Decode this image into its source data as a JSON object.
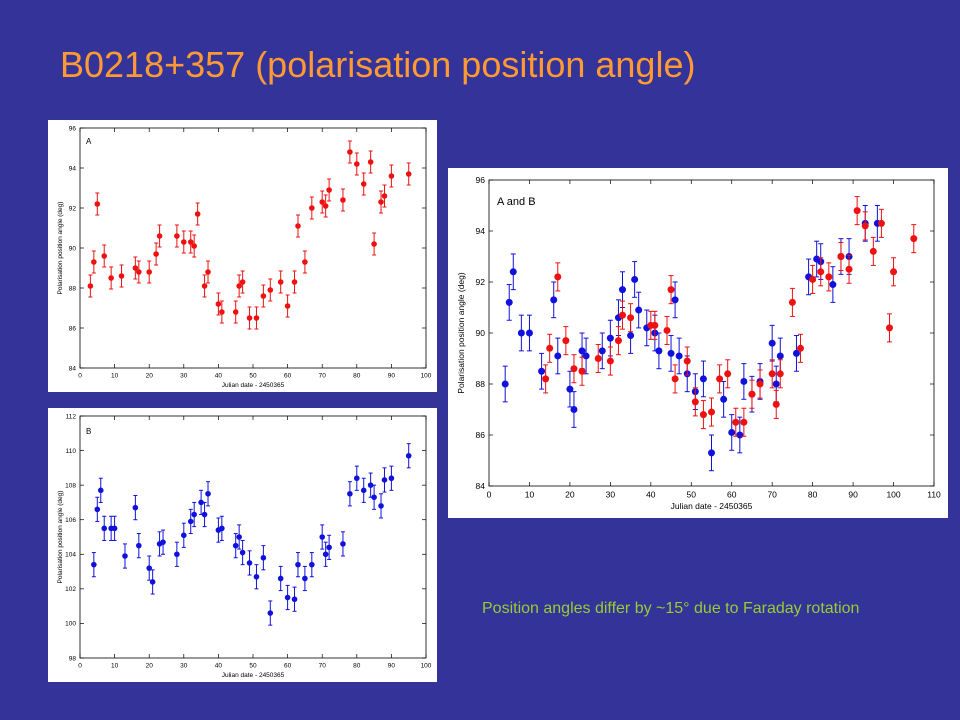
{
  "slide": {
    "title": "B0218+357 (polarisation position angle)",
    "caption": "Position angles differ by ~15° due to Faraday rotation",
    "background_color": "#333399",
    "title_color": "#ff9933",
    "caption_color": "#99cc33"
  },
  "chart_data": [
    {
      "type": "scatter",
      "panel_label": "A",
      "xlabel": "Julian date - 2450365",
      "ylabel": "Polarisation position angle (deg)",
      "xlim": [
        0,
        100
      ],
      "ylim": [
        84,
        96
      ],
      "xticks": [
        0,
        10,
        20,
        30,
        40,
        50,
        60,
        70,
        80,
        90,
        100
      ],
      "yticks": [
        84,
        86,
        88,
        90,
        92,
        94,
        96
      ],
      "series": [
        {
          "color": "#ee1111",
          "error": 0.55,
          "x": [
            3,
            4,
            5,
            7,
            9,
            12,
            16,
            17,
            20,
            22,
            23,
            28,
            30,
            32,
            33,
            34,
            36,
            37,
            40,
            41,
            45,
            46,
            47,
            49,
            51,
            53,
            55,
            58,
            60,
            62,
            63,
            65,
            67,
            70,
            71,
            72,
            76,
            78,
            80,
            82,
            84,
            85,
            87,
            88,
            90,
            95
          ],
          "y": [
            88.1,
            89.3,
            92.2,
            89.6,
            88.5,
            88.6,
            89.0,
            88.8,
            88.8,
            89.7,
            90.6,
            90.6,
            90.3,
            90.3,
            90.1,
            91.7,
            88.1,
            88.8,
            87.2,
            86.8,
            86.8,
            88.1,
            88.3,
            86.5,
            86.5,
            87.6,
            87.9,
            88.3,
            87.1,
            88.3,
            91.1,
            89.3,
            92.0,
            92.3,
            92.1,
            92.9,
            92.4,
            94.8,
            94.2,
            93.2,
            94.3,
            90.2,
            92.3,
            92.6,
            93.6,
            93.7
          ]
        }
      ]
    },
    {
      "type": "scatter",
      "panel_label": "B",
      "xlabel": "Julian date - 2450365",
      "ylabel": "Polarisation position angle (deg)",
      "xlim": [
        0,
        100
      ],
      "ylim": [
        98,
        112
      ],
      "xticks": [
        0,
        10,
        20,
        30,
        40,
        50,
        60,
        70,
        80,
        90,
        100
      ],
      "yticks": [
        98,
        100,
        102,
        104,
        106,
        108,
        110,
        112
      ],
      "series": [
        {
          "color": "#1111dd",
          "error": 0.7,
          "x": [
            4,
            5,
            6,
            7,
            9,
            10,
            13,
            16,
            17,
            20,
            21,
            23,
            24,
            28,
            30,
            32,
            33,
            35,
            36,
            37,
            40,
            41,
            45,
            46,
            47,
            49,
            51,
            53,
            55,
            58,
            60,
            62,
            63,
            65,
            67,
            70,
            71,
            72,
            76,
            78,
            80,
            82,
            84,
            85,
            87,
            88,
            90,
            95
          ],
          "y": [
            103.4,
            106.6,
            107.7,
            105.5,
            105.5,
            105.5,
            103.9,
            106.7,
            104.5,
            103.2,
            102.4,
            104.6,
            104.7,
            104.0,
            105.1,
            105.9,
            106.3,
            107.0,
            106.3,
            107.5,
            105.4,
            105.5,
            104.5,
            105.0,
            104.1,
            103.5,
            102.7,
            103.8,
            100.6,
            102.6,
            101.5,
            101.4,
            103.4,
            102.6,
            103.4,
            105.0,
            104.0,
            104.4,
            104.6,
            107.5,
            108.4,
            107.7,
            108.0,
            107.3,
            106.8,
            108.3,
            108.4,
            109.7
          ]
        }
      ]
    },
    {
      "type": "scatter",
      "panel_label": "A and B",
      "xlabel": "Julian date - 2450365",
      "ylabel": "Polarisation position angle (deg)",
      "xlim": [
        0,
        110
      ],
      "ylim": [
        84,
        96
      ],
      "xticks": [
        0,
        10,
        20,
        30,
        40,
        50,
        60,
        70,
        80,
        90,
        100,
        110
      ],
      "yticks": [
        84,
        86,
        88,
        90,
        92,
        94,
        96
      ],
      "series": [
        {
          "color": "#1111dd",
          "error": 0.7,
          "x": [
            4,
            5,
            6,
            8,
            10,
            13,
            16,
            17,
            20,
            21,
            23,
            24,
            28,
            30,
            32,
            33,
            35,
            36,
            37,
            39,
            41,
            42,
            45,
            46,
            47,
            49,
            51,
            53,
            55,
            58,
            60,
            62,
            63,
            65,
            67,
            70,
            71,
            72,
            76,
            79,
            81,
            82,
            85,
            87,
            89,
            93,
            96
          ],
          "y": [
            88.0,
            91.2,
            92.4,
            90.0,
            90.0,
            88.5,
            91.3,
            89.1,
            87.8,
            87.0,
            89.3,
            89.1,
            89.3,
            89.8,
            90.6,
            91.7,
            89.9,
            92.1,
            90.9,
            90.2,
            90.0,
            89.3,
            89.2,
            91.3,
            89.1,
            88.4,
            87.7,
            88.2,
            85.3,
            87.4,
            86.1,
            86.0,
            88.1,
            87.6,
            88.1,
            89.6,
            88.0,
            89.1,
            89.2,
            92.2,
            92.9,
            92.8,
            91.9,
            93.0,
            93.0,
            94.3,
            94.3
          ]
        },
        {
          "color": "#ee1111",
          "error": 0.55,
          "x": [
            14,
            15,
            17,
            19,
            21,
            23,
            27,
            30,
            32,
            33,
            35,
            40,
            41,
            44,
            45,
            46,
            49,
            51,
            53,
            55,
            57,
            59,
            61,
            63,
            65,
            67,
            70,
            71,
            72,
            75,
            77,
            80,
            82,
            84,
            87,
            89,
            91,
            93,
            95,
            97,
            99,
            100,
            105
          ],
          "y": [
            88.2,
            89.4,
            92.2,
            89.7,
            88.6,
            88.5,
            89.0,
            88.9,
            89.7,
            90.7,
            90.6,
            90.3,
            90.3,
            90.1,
            91.7,
            88.2,
            88.9,
            87.3,
            86.8,
            86.9,
            88.2,
            88.4,
            86.5,
            86.5,
            87.6,
            88.0,
            88.4,
            87.2,
            88.4,
            91.2,
            89.4,
            92.1,
            92.4,
            92.2,
            93.0,
            92.5,
            94.8,
            94.2,
            93.2,
            94.3,
            90.2,
            92.4,
            93.7
          ]
        }
      ]
    }
  ]
}
